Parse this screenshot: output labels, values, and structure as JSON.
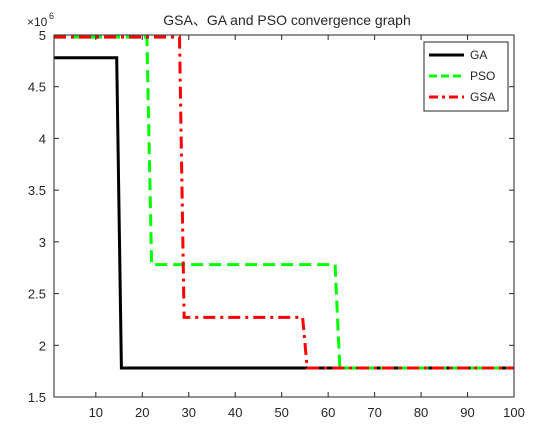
{
  "chart_data": {
    "type": "line",
    "title": "GSA、GA and PSO convergence graph",
    "xlabel": "",
    "ylabel": "",
    "xlim": [
      1,
      100
    ],
    "ylim": [
      1.5,
      5
    ],
    "y_multiplier_base": "×10",
    "y_multiplier_exp": "6",
    "xticks": [
      10,
      20,
      30,
      40,
      50,
      60,
      70,
      80,
      90,
      100
    ],
    "xtick_labels": [
      "10",
      "20",
      "30",
      "40",
      "50",
      "60",
      "70",
      "80",
      "90",
      "100"
    ],
    "yticks": [
      1.5,
      2,
      2.5,
      3,
      3.5,
      4,
      4.5,
      5
    ],
    "ytick_labels": [
      "1.5",
      "2",
      "2.5",
      "3",
      "3.5",
      "4",
      "4.5",
      "5"
    ],
    "grid": false,
    "legend_position": "top-right",
    "series": [
      {
        "name": "GA",
        "color": "#000000",
        "style": "solid",
        "x": [
          1,
          14.5,
          15.5,
          100
        ],
        "y": [
          4.78,
          4.78,
          1.78,
          1.78
        ]
      },
      {
        "name": "PSO",
        "color": "#00ff00",
        "style": "dashed",
        "x": [
          1,
          21,
          22,
          61.5,
          62.5,
          100
        ],
        "y": [
          4.98,
          4.98,
          2.78,
          2.78,
          1.78,
          1.78
        ]
      },
      {
        "name": "GSA",
        "color": "#ff0000",
        "style": "dashdot",
        "x": [
          1,
          28,
          29,
          54.5,
          55.5,
          100
        ],
        "y": [
          4.98,
          4.98,
          2.27,
          2.27,
          1.78,
          1.78
        ]
      }
    ]
  }
}
